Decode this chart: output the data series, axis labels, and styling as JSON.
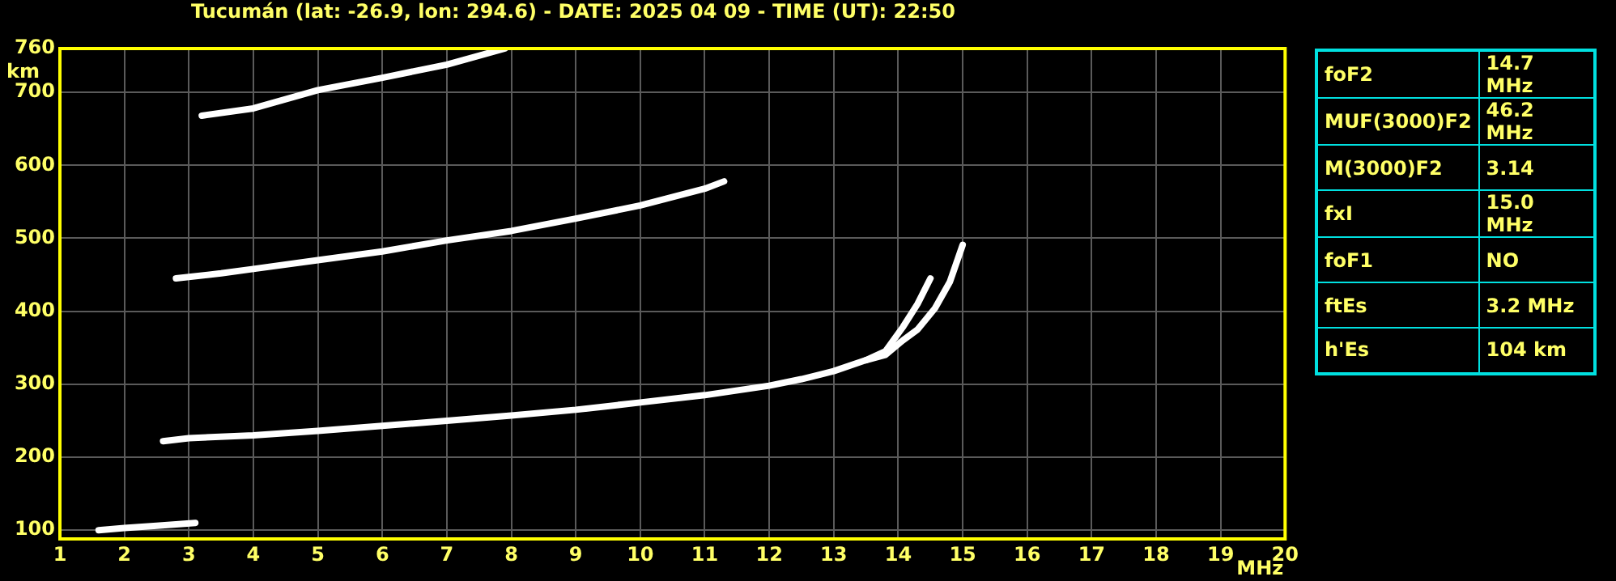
{
  "chart_data": [
    {
      "type": "line",
      "title": "Tucumán (lat: -26.9, lon: 294.6) - DATE: 2025 04 09 - TIME (UT): 22:50",
      "xlabel": "MHz",
      "ylabel": "km",
      "xlim": [
        1,
        20
      ],
      "xticks": [
        1,
        2,
        3,
        4,
        5,
        6,
        7,
        8,
        9,
        10,
        11,
        12,
        13,
        14,
        15,
        16,
        17,
        18,
        19,
        20
      ],
      "ylim": [
        88,
        760
      ],
      "yticks": [
        100,
        200,
        300,
        400,
        500,
        600,
        700,
        760
      ],
      "grid": true,
      "legend": false,
      "marker": "none",
      "line_style": "solid",
      "series": [
        {
          "color": "#ffffff",
          "x": [
            1.6,
            2,
            2.5,
            3.1
          ],
          "values": [
            100,
            103,
            106,
            110
          ]
        },
        {
          "color": "#ffffff",
          "x": [
            2.6,
            3,
            4,
            5,
            6,
            7,
            8,
            9,
            10,
            11,
            12,
            12.5,
            13,
            13.5,
            13.8,
            14.07,
            14.3,
            14.5
          ],
          "values": [
            222,
            226,
            230,
            236,
            243,
            250,
            257,
            265,
            275,
            285,
            298,
            307,
            318,
            333,
            345,
            378,
            410,
            445
          ]
        },
        {
          "color": "#ffffff",
          "x": [
            13.5,
            13.8,
            14.07,
            14.3,
            14.57,
            14.8,
            15
          ],
          "values": [
            333,
            340,
            360,
            375,
            404,
            440,
            491
          ]
        },
        {
          "color": "#ffffff",
          "x": [
            2.8,
            3.5,
            4,
            5,
            6,
            7,
            8,
            9,
            10,
            11,
            11.3
          ],
          "values": [
            445,
            452,
            458,
            470,
            482,
            497,
            510,
            527,
            545,
            568,
            578
          ]
        },
        {
          "color": "#ffffff",
          "x": [
            3.2,
            4,
            5,
            6,
            7,
            7.9
          ],
          "values": [
            668,
            678,
            703,
            720,
            738,
            760
          ]
        }
      ]
    },
    {
      "type": "other",
      "annotations": [
        "foF2",
        "14.7 MHz",
        "MUF(3000)F2",
        "46.2 MHz",
        "M(3000)F2",
        "3.14",
        "fxI",
        "15.0 MHz",
        "foF1",
        "NO",
        "ftEs",
        "3.2 MHz",
        "h'Es",
        "104 km"
      ]
    }
  ]
}
